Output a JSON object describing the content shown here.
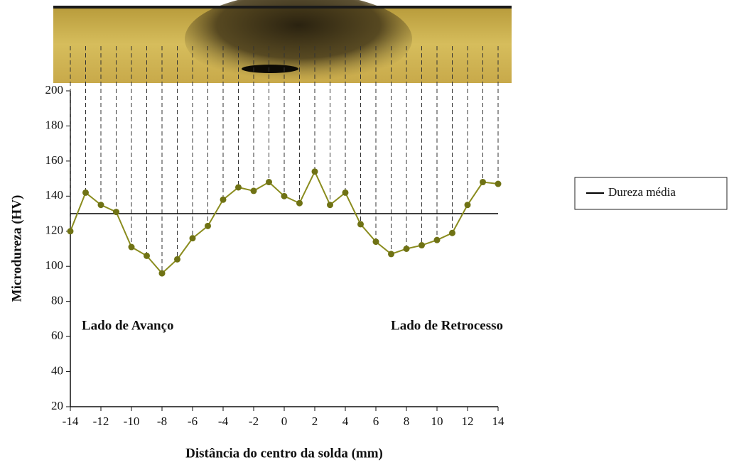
{
  "chart_data": {
    "type": "line",
    "x_label": "Distância do centro da solda (mm)",
    "y_label": "Microdureza (HV)",
    "x": [
      -14,
      -13,
      -12,
      -11,
      -10,
      -9,
      -8,
      -7,
      -6,
      -5,
      -4,
      -3,
      -2,
      -1,
      0,
      1,
      2,
      3,
      4,
      5,
      6,
      7,
      8,
      9,
      10,
      11,
      12,
      13,
      14
    ],
    "values": [
      120,
      142,
      135,
      131,
      111,
      106,
      96,
      104,
      116,
      123,
      138,
      145,
      143,
      148,
      140,
      136,
      154,
      135,
      142,
      124,
      114,
      107,
      110,
      112,
      115,
      119,
      135,
      148,
      147
    ],
    "color": "#8a8c1e",
    "mean_line": {
      "name": "Dureza média",
      "value": 130,
      "color": "#000000"
    },
    "annotations": [
      "Lado de Avanço",
      "Lado de Retrocesso"
    ],
    "xlim": [
      -14,
      14
    ],
    "xticks": [
      -14,
      -12,
      -10,
      -8,
      -6,
      -4,
      -2,
      0,
      2,
      4,
      6,
      8,
      10,
      12,
      14
    ],
    "ylim": [
      20,
      200
    ],
    "yticks": [
      20,
      40,
      60,
      80,
      100,
      120,
      140,
      160,
      180,
      200
    ],
    "grid": false
  }
}
